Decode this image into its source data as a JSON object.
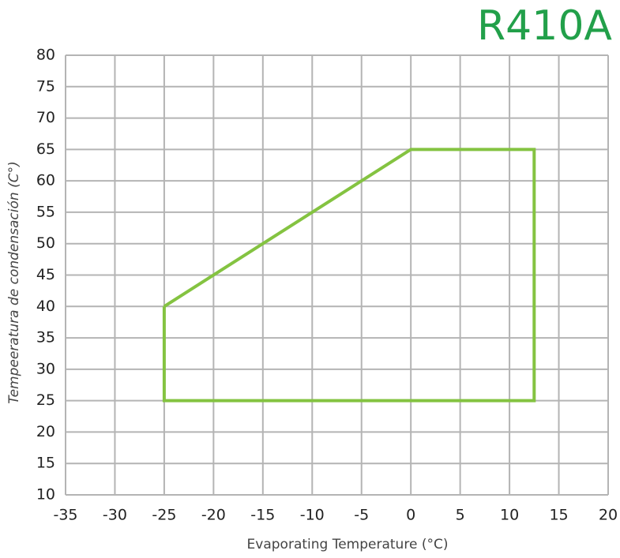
{
  "chart_data": {
    "type": "line",
    "title": "R410A",
    "x_label": "Evaporating Temperature (°C)",
    "y_label": "Tempeeratura de condensación (C°)",
    "series": [
      {
        "name": "R410A",
        "color": "#84c341",
        "x": [
          -25,
          0,
          12.5,
          12.5,
          -25,
          -25
        ],
        "values": [
          40,
          65,
          65,
          25,
          25,
          40
        ]
      }
    ],
    "xlim": [
      -35,
      20
    ],
    "xticks": [
      -35,
      -30,
      -25,
      -20,
      -15,
      -10,
      -5,
      0,
      5,
      10,
      15,
      20
    ],
    "ylim": [
      10,
      80
    ],
    "yticks": [
      10,
      15,
      20,
      25,
      30,
      35,
      40,
      45,
      50,
      55,
      60,
      65,
      70,
      75,
      80
    ],
    "grid": true
  }
}
